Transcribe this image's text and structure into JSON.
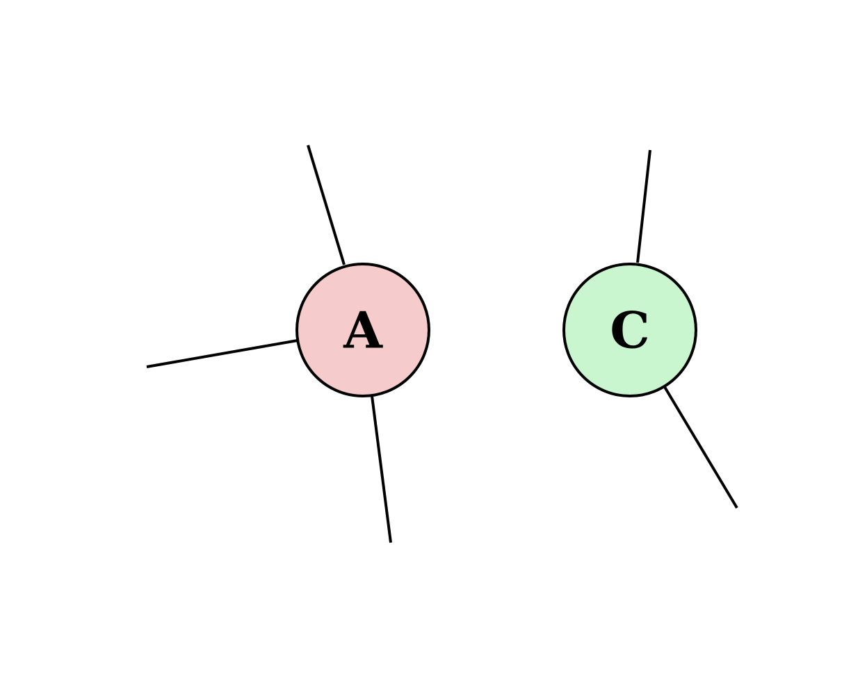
{
  "nodes": [
    {
      "id": "A",
      "label": "A",
      "fill": "#f5cbcb"
    },
    {
      "id": "C",
      "label": "C",
      "fill": "#c9f5cf"
    }
  ],
  "stroke_color": "#000000",
  "background_color": "#ffffff"
}
